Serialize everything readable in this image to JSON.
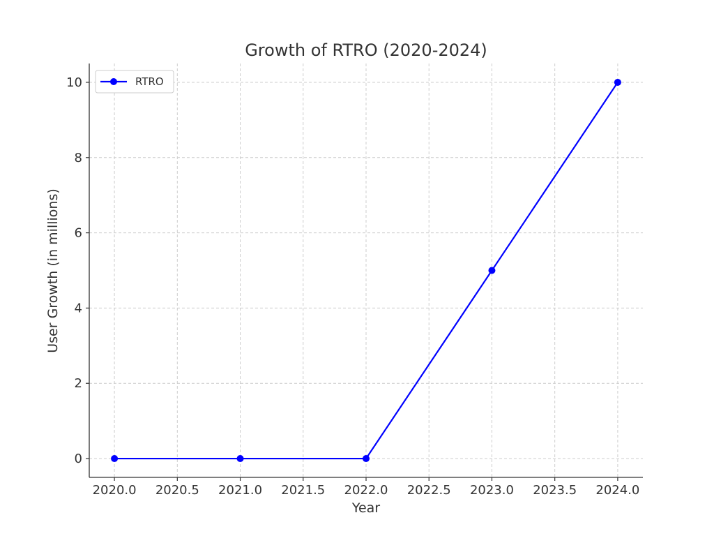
{
  "chart_data": {
    "type": "line",
    "title": "Growth of RTRO (2020-2024)",
    "xlabel": "Year",
    "ylabel": "User Growth (in millions)",
    "x": [
      2020,
      2021,
      2022,
      2023,
      2024
    ],
    "series": [
      {
        "name": "RTRO",
        "color": "#0000ff",
        "marker": "circle",
        "values": [
          0,
          0,
          0,
          5,
          10
        ]
      }
    ],
    "xlim": [
      2019.8,
      2024.2
    ],
    "ylim": [
      -0.5,
      10.5
    ],
    "xticks": [
      "2020.0",
      "2020.5",
      "2021.0",
      "2021.5",
      "2022.0",
      "2022.5",
      "2023.0",
      "2023.5",
      "2024.0"
    ],
    "yticks": [
      "0",
      "2",
      "4",
      "6",
      "8",
      "10"
    ],
    "grid": true,
    "legend_position": "top-left"
  }
}
